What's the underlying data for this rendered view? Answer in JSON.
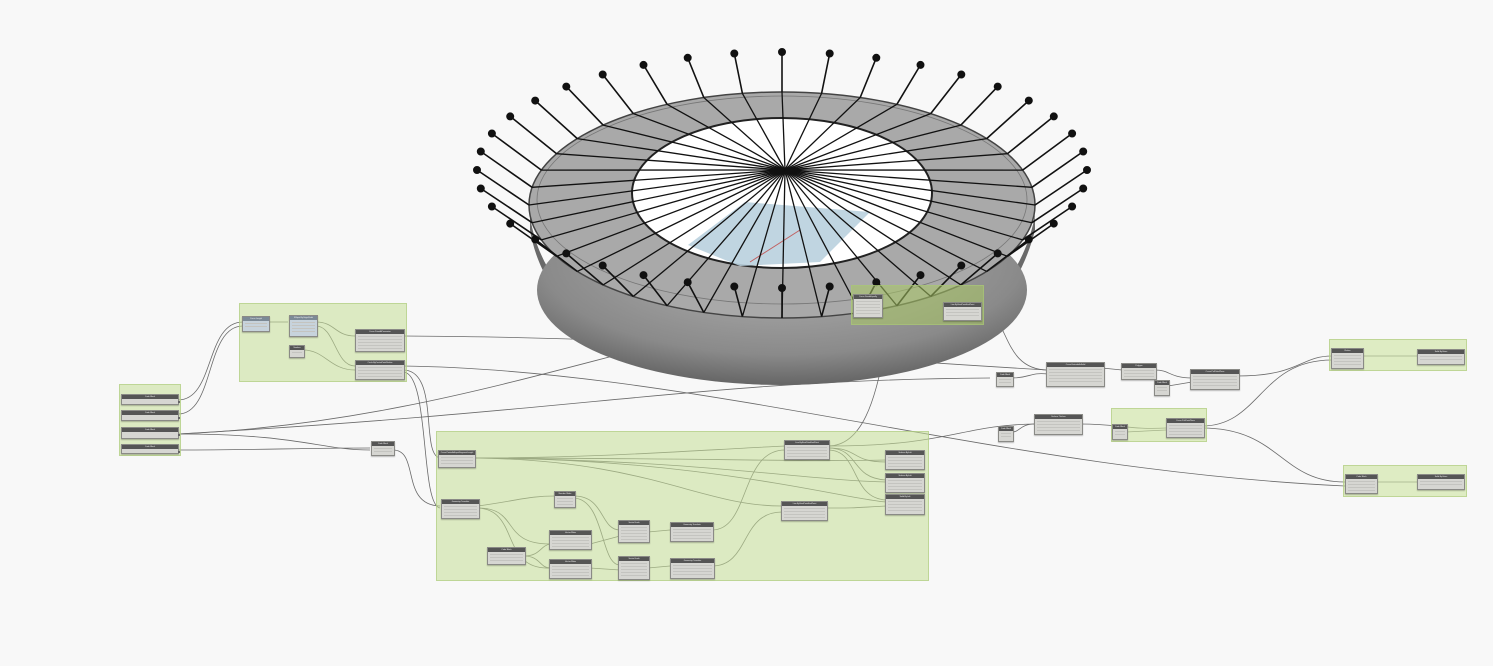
{
  "colors": {
    "canvas": "#f8f8f8",
    "group_fill": "#d5e6b4",
    "node_header": "#555555",
    "wire": "#6a6a6a"
  },
  "graph": {
    "nodes": [
      {
        "id": "n01",
        "title": "Code Block"
      },
      {
        "id": "n02",
        "title": "Code Block"
      },
      {
        "id": "n03",
        "title": "Code Block"
      },
      {
        "id": "n04",
        "title": "Code Block"
      },
      {
        "id": "n05",
        "title": "Curve.Length"
      },
      {
        "id": "n06",
        "title": "Ellipse.ByOriginRadii"
      },
      {
        "id": "n07",
        "title": "Number"
      },
      {
        "id": "n08",
        "title": "Curve.PointAtParameter"
      },
      {
        "id": "n09",
        "title": "Circle.ByCenterPointRadius"
      },
      {
        "id": "n10",
        "title": "Code Block"
      },
      {
        "id": "n11",
        "title": "Curve.PointsAtEqualSegmentLength"
      },
      {
        "id": "n12",
        "title": "Geometry.Translate"
      },
      {
        "id": "n13",
        "title": "Geometry.Translate"
      },
      {
        "id": "n14",
        "title": "Line.ByStartPointEndPoint"
      },
      {
        "id": "n15",
        "title": "Line.ByStartPointEndPoint"
      },
      {
        "id": "n16",
        "title": "Line.ByStartPointEndPoint"
      },
      {
        "id": "n17",
        "title": "Curve.DivideEqually"
      },
      {
        "id": "n18",
        "title": "Number Slider"
      },
      {
        "id": "n19",
        "title": "Vector.ZAxis"
      },
      {
        "id": "n20",
        "title": "Vector.ZAxis"
      },
      {
        "id": "n21",
        "title": "Vector.Scale"
      },
      {
        "id": "n22",
        "title": "Vector.Scale"
      },
      {
        "id": "n23",
        "title": "Curve.ExtrudeAsSolid"
      },
      {
        "id": "n24",
        "title": "Surface.ByLoft"
      },
      {
        "id": "n25",
        "title": "Polygon"
      },
      {
        "id": "n26",
        "title": "Code Block"
      },
      {
        "id": "n27",
        "title": "Surface.ByLoft"
      },
      {
        "id": "n28",
        "title": "Curve.PullOntoPlane"
      },
      {
        "id": "n29",
        "title": "Flatten"
      },
      {
        "id": "n30",
        "title": "Code Block"
      },
      {
        "id": "n31",
        "title": "Solid.ByUnion"
      },
      {
        "id": "n32",
        "title": "Code Block"
      },
      {
        "id": "n33",
        "title": "Solid.ByLoft"
      },
      {
        "id": "n34",
        "title": "Code Block"
      },
      {
        "id": "n35",
        "title": "Solid.ByUnion"
      },
      {
        "id": "n36",
        "title": "Surface.Thicken"
      },
      {
        "id": "n37",
        "title": "Code Block"
      },
      {
        "id": "n38",
        "title": "Geometry.Translate"
      },
      {
        "id": "n39",
        "title": "Curve.PullOntoPlane"
      },
      {
        "id": "n40",
        "title": "Solid.ByUnion"
      },
      {
        "id": "n41",
        "title": "Code Block"
      },
      {
        "id": "n42",
        "title": "Geometry.Translate"
      },
      {
        "id": "n43",
        "title": "Curve.PullOntoPlane"
      },
      {
        "id": "n44",
        "title": "Solid.ByUnion"
      }
    ]
  }
}
